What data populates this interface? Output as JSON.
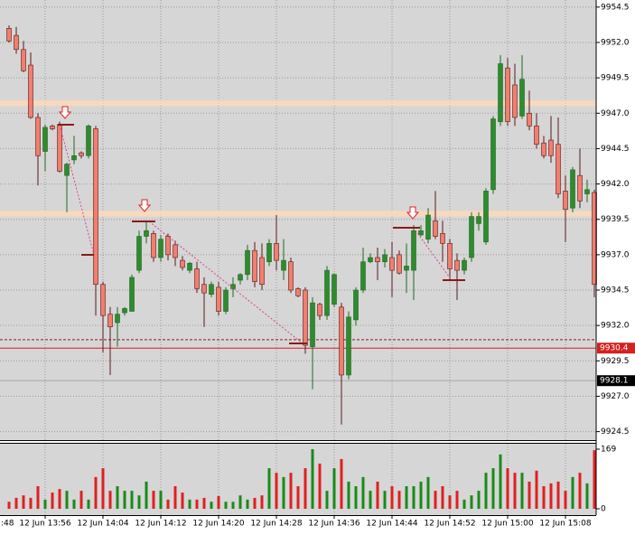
{
  "chart_data": {
    "type": "candlestick",
    "grid": true,
    "up_color": "#2e8b2e",
    "down_color": "#f07f6f",
    "x_edge_label": ":48",
    "categories": [
      null,
      null,
      null,
      null,
      null,
      "12 Jun 13:56",
      null,
      null,
      null,
      null,
      null,
      null,
      null,
      "12 Jun 14:04",
      null,
      null,
      null,
      null,
      null,
      null,
      null,
      "12 Jun 14:12",
      null,
      null,
      null,
      null,
      null,
      null,
      null,
      "12 Jun 14:20",
      null,
      null,
      null,
      null,
      null,
      null,
      null,
      "12 Jun 14:28",
      null,
      null,
      null,
      null,
      null,
      null,
      null,
      "12 Jun 14:36",
      null,
      null,
      null,
      null,
      null,
      null,
      null,
      "12 Jun 14:44",
      null,
      null,
      null,
      null,
      null,
      null,
      null,
      "12 Jun 14:52",
      null,
      null,
      null,
      null,
      null,
      null,
      null,
      "12 Jun 15:00",
      null,
      null,
      null,
      null,
      null,
      null,
      null,
      "12 Jun 15:08",
      null,
      null,
      null,
      null
    ],
    "open": [
      9953.0,
      9952.5,
      9951.5,
      9950.4,
      9946.7,
      9944.3,
      9946.1,
      9946.2,
      9942.6,
      9943.7,
      9944.2,
      9944.0,
      9945.9,
      9934.9,
      9932.8,
      9932.2,
      9932.9,
      9933.0,
      9935.9,
      9938.3,
      9938.5,
      9936.8,
      9938.3,
      9937.7,
      9936.6,
      9935.9,
      9936.0,
      9934.9,
      9934.2,
      9934.7,
      9933.0,
      9934.6,
      9935.2,
      9935.6,
      9937.3,
      9936.8,
      9936.5,
      9937.8,
      9935.9,
      9936.5,
      9934.6,
      9934.5,
      9930.5,
      9933.5,
      9932.7,
      9933.5,
      9933.3,
      9928.5,
      9932.4,
      9934.5,
      9936.5,
      9936.8,
      9936.5,
      9936.8,
      9937.0,
      9935.9,
      9935.9,
      9938.4,
      9938.1,
      9939.4,
      9938.5,
      9937.8,
      9936.6,
      9935.9,
      9936.8,
      9939.2,
      9937.9,
      9941.6,
      9946.4,
      9950.2,
      9949.0,
      9946.8,
      9947.0,
      9946.1,
      9944.9,
      9945.1,
      9944.8,
      9941.5,
      9940.3,
      9942.6,
      9941.3,
      9941.4
    ],
    "high": [
      9953.2,
      9953.1,
      9952.1,
      9951.3,
      9947.0,
      9946.2,
      9946.2,
      9946.4,
      9943.5,
      9945.4,
      9944.3,
      9946.2,
      9946.1,
      9935.1,
      9933.3,
      9933.3,
      9933.3,
      9935.6,
      9938.7,
      9939.4,
      9938.7,
      9938.4,
      9938.5,
      9938.0,
      9936.9,
      9936.5,
      9936.5,
      9935.4,
      9935.1,
      9935.1,
      9934.7,
      9935.4,
      9935.7,
      9937.7,
      9937.9,
      9937.8,
      9938.1,
      9939.8,
      9938.1,
      9936.8,
      9934.7,
      9934.7,
      9934.0,
      9933.6,
      9936.2,
      9935.7,
      9933.6,
      9933.0,
      9934.7,
      9937.5,
      9937.1,
      9937.5,
      9937.4,
      9937.9,
      9937.3,
      9937.8,
      9939.1,
      9939.1,
      9940.3,
      9941.5,
      9939.4,
      9938.1,
      9937.1,
      9936.8,
      9940.0,
      9940.0,
      9941.7,
      9946.8,
      9951.1,
      9950.9,
      9950.5,
      9951.1,
      9948.6,
      9947.0,
      9945.4,
      9946.8,
      9946.7,
      9942.6,
      9943.2,
      9944.5,
      9942.3,
      9941.6
    ],
    "low": [
      9952.0,
      9951.2,
      9949.9,
      9946.6,
      9941.9,
      9942.9,
      9945.8,
      9942.8,
      9940.0,
      9943.4,
      9943.8,
      9943.8,
      9932.7,
      9930.1,
      9928.5,
      9930.5,
      9932.7,
      9933.0,
      9935.7,
      9937.8,
      9936.5,
      9936.5,
      9936.6,
      9936.2,
      9935.9,
      9935.7,
      9934.3,
      9931.9,
      9934.0,
      9932.7,
      9932.8,
      9934.0,
      9934.9,
      9935.2,
      9934.7,
      9934.5,
      9936.2,
      9935.9,
      9935.2,
      9934.3,
      9934.0,
      9930.0,
      9927.5,
      9932.4,
      9932.4,
      9933.3,
      9925.0,
      9928.2,
      9932.0,
      9934.3,
      9936.4,
      9935.2,
      9936.1,
      9934.0,
      9935.6,
      9934.3,
      9933.8,
      9938.3,
      9937.8,
      9938.1,
      9936.5,
      9935.2,
      9933.8,
      9935.6,
      9936.5,
      9938.7,
      9937.7,
      9941.3,
      9946.1,
      9946.1,
      9946.1,
      9946.6,
      9945.8,
      9944.5,
      9943.8,
      9943.5,
      9941.0,
      9937.9,
      9940.0,
      9940.3,
      9940.7,
      9934.0
    ],
    "close": [
      9952.1,
      9951.5,
      9950.0,
      9946.7,
      9944.0,
      9946.0,
      9945.9,
      9942.9,
      9943.4,
      9944.0,
      9944.0,
      9946.1,
      9934.9,
      9932.7,
      9931.9,
      9932.8,
      9933.2,
      9935.4,
      9938.3,
      9938.7,
      9936.8,
      9938.1,
      9937.0,
      9936.8,
      9936.1,
      9936.4,
      9934.6,
      9934.3,
      9934.9,
      9933.0,
      9934.5,
      9934.9,
      9935.6,
      9937.3,
      9935.1,
      9934.9,
      9937.8,
      9936.6,
      9936.6,
      9934.5,
      9934.1,
      9930.6,
      9933.6,
      9932.7,
      9935.9,
      9935.6,
      9928.5,
      9932.6,
      9934.5,
      9936.5,
      9936.8,
      9936.5,
      9937.0,
      9935.9,
      9935.7,
      9936.2,
      9938.7,
      9938.7,
      9939.8,
      9938.3,
      9937.8,
      9936.0,
      9935.9,
      9936.6,
      9939.7,
      9939.7,
      9941.5,
      9946.6,
      9950.5,
      9946.4,
      9946.7,
      9949.4,
      9946.1,
      9944.8,
      9944.0,
      9944.0,
      9941.3,
      9940.2,
      9943.0,
      9940.8,
      9941.6,
      9934.9
    ],
    "ylim": [
      9923.9,
      9955.0
    ],
    "yticks": [
      9954.5,
      {
        "value": 9952,
        "label": "9952.0"
      },
      9949.5,
      {
        "value": 9947,
        "label": "9947.0"
      },
      9944.5,
      {
        "value": 9942,
        "label": "9942.0"
      },
      9939.5,
      {
        "value": 9937,
        "label": "9937.0"
      },
      9934.5,
      {
        "value": 9932,
        "label": "9932.0"
      },
      9929.5,
      {
        "value": 9927,
        "label": "9927.0"
      },
      9924.5
    ],
    "levels": [
      {
        "value": 9947.7,
        "color": "#ffd9b8",
        "style": "band"
      },
      {
        "value": 9939.9,
        "color": "#ffd9b8",
        "style": "band"
      },
      {
        "value": 9931.0,
        "color": "#8b1a1a",
        "style": "dash"
      },
      {
        "value": 9930.4,
        "color": "#d42020",
        "style": "solid",
        "label_bg": "#d42020"
      },
      {
        "value": 9928.1,
        "color": "#a8a8a8",
        "style": "solid",
        "label_bg": "#000000"
      }
    ],
    "volume": {
      "values": [
        20,
        31,
        38,
        31,
        64,
        26,
        46,
        56,
        51,
        26,
        51,
        26,
        90,
        115,
        51,
        64,
        51,
        51,
        38,
        77,
        51,
        51,
        26,
        64,
        46,
        26,
        26,
        31,
        20,
        36,
        20,
        20,
        38,
        26,
        31,
        38,
        115,
        102,
        90,
        102,
        64,
        115,
        169,
        128,
        51,
        115,
        141,
        77,
        64,
        90,
        51,
        77,
        51,
        64,
        51,
        64,
        64,
        77,
        90,
        51,
        64,
        38,
        51,
        26,
        38,
        51,
        102,
        115,
        154,
        115,
        102,
        102,
        77,
        108,
        64,
        72,
        77,
        51,
        90,
        102,
        72,
        166
      ],
      "ylim": [
        0,
        169
      ],
      "yticks": [
        0,
        169
      ]
    }
  }
}
